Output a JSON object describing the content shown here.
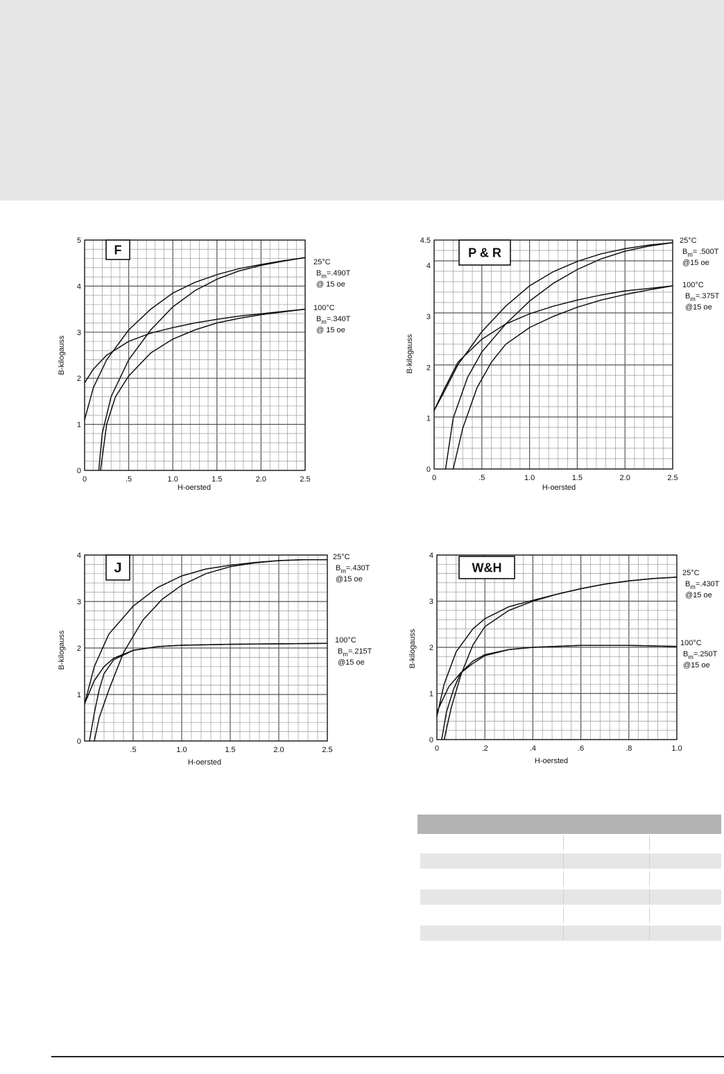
{
  "chart_data": [
    {
      "type": "line",
      "title": "F",
      "xlabel": "H-oersted",
      "ylabel": "B-kilogauss",
      "xlim": [
        0,
        2.5
      ],
      "ylim": [
        0,
        5
      ],
      "x_ticks": [
        "0",
        ".5",
        "1.0",
        "1.5",
        "2.0",
        "2.5"
      ],
      "y_ticks": [
        "0",
        "1",
        "2",
        "3",
        "4",
        "5"
      ],
      "grid": true,
      "legend": "right",
      "series": [
        {
          "label_lines": [
            "25°C",
            "B",
            "m",
            "=.490T",
            "@ 15 oe"
          ],
          "up": [
            [
              0,
              1.1
            ],
            [
              0.1,
              1.8
            ],
            [
              0.25,
              2.4
            ],
            [
              0.5,
              3.05
            ],
            [
              0.75,
              3.5
            ],
            [
              1.0,
              3.85
            ],
            [
              1.25,
              4.08
            ],
            [
              1.5,
              4.25
            ],
            [
              1.75,
              4.38
            ],
            [
              2.0,
              4.47
            ],
            [
              2.25,
              4.55
            ],
            [
              2.5,
              4.62
            ]
          ],
          "down": [
            [
              0.16,
              0
            ],
            [
              0.2,
              0.8
            ],
            [
              0.3,
              1.6
            ],
            [
              0.5,
              2.4
            ],
            [
              0.75,
              3.05
            ],
            [
              1.0,
              3.55
            ],
            [
              1.25,
              3.9
            ],
            [
              1.5,
              4.15
            ],
            [
              1.75,
              4.33
            ],
            [
              2.0,
              4.45
            ],
            [
              2.25,
              4.54
            ],
            [
              2.5,
              4.62
            ]
          ]
        },
        {
          "label_lines": [
            "100°C",
            "B",
            "m",
            "=.340T",
            "@ 15 oe"
          ],
          "up": [
            [
              0,
              1.9
            ],
            [
              0.1,
              2.2
            ],
            [
              0.25,
              2.5
            ],
            [
              0.5,
              2.8
            ],
            [
              0.75,
              2.98
            ],
            [
              1.0,
              3.1
            ],
            [
              1.25,
              3.2
            ],
            [
              1.5,
              3.28
            ],
            [
              1.75,
              3.35
            ],
            [
              2.0,
              3.4
            ],
            [
              2.25,
              3.45
            ],
            [
              2.5,
              3.5
            ]
          ],
          "down": [
            [
              0.18,
              0
            ],
            [
              0.25,
              1.0
            ],
            [
              0.35,
              1.6
            ],
            [
              0.5,
              2.05
            ],
            [
              0.75,
              2.55
            ],
            [
              1.0,
              2.85
            ],
            [
              1.25,
              3.05
            ],
            [
              1.5,
              3.2
            ],
            [
              1.75,
              3.3
            ],
            [
              2.0,
              3.38
            ],
            [
              2.25,
              3.44
            ],
            [
              2.5,
              3.5
            ]
          ]
        }
      ]
    },
    {
      "type": "line",
      "title": "P & R",
      "xlabel": "H-oersted",
      "ylabel": "B-kilogauss",
      "xlim": [
        0,
        2.5
      ],
      "ylim": [
        0,
        4.5
      ],
      "x_ticks": [
        "0",
        ".5",
        "1.0",
        "1.5",
        "2.0",
        "2.5"
      ],
      "y_ticks": [
        "0",
        "1",
        "2",
        "3",
        "4",
        "4.5"
      ],
      "grid": true,
      "legend": "right",
      "series": [
        {
          "label_lines": [
            "25°C",
            "B",
            "m",
            "= .500T",
            "@15 oe"
          ],
          "up": [
            [
              0,
              1.15
            ],
            [
              0.1,
              1.5
            ],
            [
              0.25,
              2.05
            ],
            [
              0.5,
              2.7
            ],
            [
              0.75,
              3.2
            ],
            [
              1.0,
              3.6
            ],
            [
              1.25,
              3.88
            ],
            [
              1.5,
              4.08
            ],
            [
              1.75,
              4.23
            ],
            [
              2.0,
              4.33
            ],
            [
              2.25,
              4.4
            ],
            [
              2.5,
              4.45
            ]
          ],
          "down": [
            [
              0.12,
              0
            ],
            [
              0.2,
              1.0
            ],
            [
              0.35,
              1.8
            ],
            [
              0.5,
              2.3
            ],
            [
              0.75,
              2.85
            ],
            [
              1.0,
              3.3
            ],
            [
              1.25,
              3.65
            ],
            [
              1.5,
              3.92
            ],
            [
              1.75,
              4.13
            ],
            [
              2.0,
              4.28
            ],
            [
              2.25,
              4.38
            ],
            [
              2.5,
              4.45
            ]
          ]
        },
        {
          "label_lines": [
            "100°C",
            "B",
            "m",
            "=.375T",
            "@15 oe"
          ],
          "up": [
            [
              0,
              1.15
            ],
            [
              0.1,
              1.55
            ],
            [
              0.25,
              2.1
            ],
            [
              0.5,
              2.55
            ],
            [
              0.75,
              2.85
            ],
            [
              1.0,
              3.05
            ],
            [
              1.25,
              3.2
            ],
            [
              1.5,
              3.32
            ],
            [
              1.75,
              3.42
            ],
            [
              2.0,
              3.5
            ],
            [
              2.25,
              3.55
            ],
            [
              2.5,
              3.6
            ]
          ],
          "down": [
            [
              0.2,
              0
            ],
            [
              0.3,
              0.8
            ],
            [
              0.45,
              1.6
            ],
            [
              0.6,
              2.1
            ],
            [
              0.75,
              2.45
            ],
            [
              1.0,
              2.78
            ],
            [
              1.25,
              3.0
            ],
            [
              1.5,
              3.18
            ],
            [
              1.75,
              3.32
            ],
            [
              2.0,
              3.43
            ],
            [
              2.25,
              3.52
            ],
            [
              2.5,
              3.6
            ]
          ]
        }
      ]
    },
    {
      "type": "line",
      "title": "J",
      "xlabel": "H-oersted",
      "ylabel": "B-kilogauss",
      "xlim": [
        0,
        2.5
      ],
      "ylim": [
        0,
        4
      ],
      "x_ticks": [
        ".5",
        "1.0",
        "1.5",
        "2.0",
        "2.5"
      ],
      "y_ticks": [
        "0",
        "1",
        "2",
        "3",
        "4"
      ],
      "grid": true,
      "legend": "right",
      "series": [
        {
          "label_lines": [
            "25°C",
            "B",
            "m",
            "=.430T",
            "@15 oe"
          ],
          "up": [
            [
              0,
              0.8
            ],
            [
              0.1,
              1.6
            ],
            [
              0.25,
              2.3
            ],
            [
              0.5,
              2.9
            ],
            [
              0.75,
              3.3
            ],
            [
              1.0,
              3.55
            ],
            [
              1.25,
              3.7
            ],
            [
              1.5,
              3.78
            ],
            [
              1.75,
              3.84
            ],
            [
              2.0,
              3.88
            ],
            [
              2.25,
              3.9
            ],
            [
              2.5,
              3.9
            ]
          ],
          "down": [
            [
              0.1,
              0
            ],
            [
              0.15,
              0.5
            ],
            [
              0.25,
              1.1
            ],
            [
              0.4,
              1.9
            ],
            [
              0.6,
              2.6
            ],
            [
              0.8,
              3.05
            ],
            [
              1.0,
              3.35
            ],
            [
              1.25,
              3.6
            ],
            [
              1.5,
              3.75
            ],
            [
              1.75,
              3.83
            ],
            [
              2.0,
              3.88
            ],
            [
              2.25,
              3.9
            ],
            [
              2.5,
              3.9
            ]
          ]
        },
        {
          "label_lines": [
            "100°C",
            "B",
            "m",
            "=.215T",
            "@15 oe"
          ],
          "up": [
            [
              0,
              0.8
            ],
            [
              0.1,
              1.3
            ],
            [
              0.2,
              1.6
            ],
            [
              0.3,
              1.78
            ],
            [
              0.5,
              1.95
            ],
            [
              0.75,
              2.03
            ],
            [
              1.0,
              2.06
            ],
            [
              1.5,
              2.08
            ],
            [
              2.0,
              2.09
            ],
            [
              2.5,
              2.1
            ]
          ],
          "down": [
            [
              0.05,
              0
            ],
            [
              0.1,
              0.6
            ],
            [
              0.15,
              1.1
            ],
            [
              0.2,
              1.45
            ],
            [
              0.3,
              1.75
            ],
            [
              0.5,
              1.95
            ],
            [
              0.75,
              2.03
            ],
            [
              1.0,
              2.06
            ],
            [
              1.5,
              2.08
            ],
            [
              2.0,
              2.09
            ],
            [
              2.5,
              2.1
            ]
          ]
        }
      ]
    },
    {
      "type": "line",
      "title": "W&H",
      "xlabel": "H-oersted",
      "ylabel": "B-kilogauss",
      "xlim": [
        0,
        1.0
      ],
      "ylim": [
        0,
        4
      ],
      "x_ticks": [
        "0",
        ".2",
        ".4",
        ".6",
        ".8",
        "1.0"
      ],
      "y_ticks": [
        "0",
        "1",
        "2",
        "3",
        "4"
      ],
      "grid": true,
      "legend": "right",
      "series": [
        {
          "label_lines": [
            "25°C",
            "B",
            "m",
            "=.430T",
            "@15 oe"
          ],
          "up": [
            [
              0,
              0.5
            ],
            [
              0.03,
              1.2
            ],
            [
              0.08,
              1.9
            ],
            [
              0.15,
              2.4
            ],
            [
              0.2,
              2.62
            ],
            [
              0.3,
              2.88
            ],
            [
              0.4,
              3.02
            ],
            [
              0.5,
              3.15
            ],
            [
              0.6,
              3.27
            ],
            [
              0.7,
              3.37
            ],
            [
              0.8,
              3.44
            ],
            [
              0.9,
              3.49
            ],
            [
              1.0,
              3.52
            ]
          ],
          "down": [
            [
              0.03,
              0
            ],
            [
              0.06,
              0.7
            ],
            [
              0.1,
              1.4
            ],
            [
              0.15,
              2.05
            ],
            [
              0.2,
              2.45
            ],
            [
              0.3,
              2.8
            ],
            [
              0.4,
              3.0
            ],
            [
              0.5,
              3.15
            ],
            [
              0.6,
              3.27
            ],
            [
              0.7,
              3.37
            ],
            [
              0.8,
              3.44
            ],
            [
              0.9,
              3.49
            ],
            [
              1.0,
              3.52
            ]
          ]
        },
        {
          "label_lines": [
            "100°C",
            "B",
            "m",
            "=.250T",
            "@15 oe"
          ],
          "up": [
            [
              0,
              0.6
            ],
            [
              0.05,
              1.15
            ],
            [
              0.1,
              1.45
            ],
            [
              0.15,
              1.65
            ],
            [
              0.2,
              1.82
            ],
            [
              0.3,
              1.95
            ],
            [
              0.4,
              2.0
            ],
            [
              0.6,
              2.04
            ],
            [
              0.8,
              2.04
            ],
            [
              1.0,
              2.02
            ]
          ],
          "down": [
            [
              0.02,
              0
            ],
            [
              0.04,
              0.6
            ],
            [
              0.07,
              1.1
            ],
            [
              0.1,
              1.45
            ],
            [
              0.15,
              1.7
            ],
            [
              0.2,
              1.84
            ],
            [
              0.3,
              1.95
            ],
            [
              0.4,
              2.0
            ],
            [
              0.6,
              2.04
            ],
            [
              0.8,
              2.04
            ],
            [
              1.0,
              2.02
            ]
          ]
        }
      ]
    }
  ]
}
